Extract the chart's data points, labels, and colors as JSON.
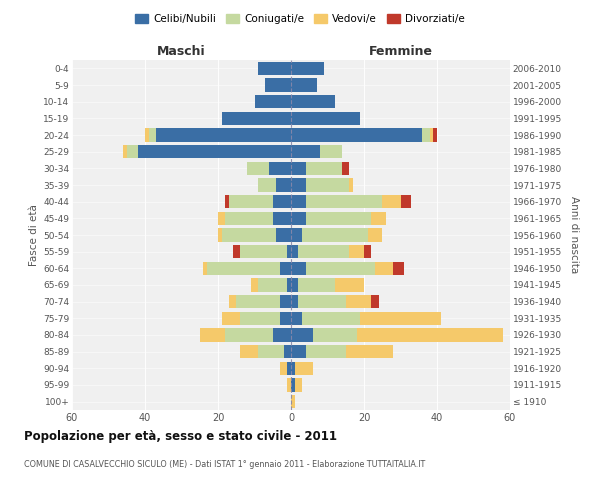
{
  "age_groups": [
    "100+",
    "95-99",
    "90-94",
    "85-89",
    "80-84",
    "75-79",
    "70-74",
    "65-69",
    "60-64",
    "55-59",
    "50-54",
    "45-49",
    "40-44",
    "35-39",
    "30-34",
    "25-29",
    "20-24",
    "15-19",
    "10-14",
    "5-9",
    "0-4"
  ],
  "birth_years": [
    "≤ 1910",
    "1911-1915",
    "1916-1920",
    "1921-1925",
    "1926-1930",
    "1931-1935",
    "1936-1940",
    "1941-1945",
    "1946-1950",
    "1951-1955",
    "1956-1960",
    "1961-1965",
    "1966-1970",
    "1971-1975",
    "1976-1980",
    "1981-1985",
    "1986-1990",
    "1991-1995",
    "1996-2000",
    "2001-2005",
    "2006-2010"
  ],
  "colors": {
    "celibi": "#3a6ea5",
    "coniugati": "#c5d9a0",
    "vedovi": "#f5c96a",
    "divorziati": "#c0392b"
  },
  "maschi": {
    "celibi": [
      0,
      0,
      1,
      2,
      5,
      3,
      3,
      1,
      3,
      1,
      4,
      5,
      5,
      4,
      6,
      42,
      37,
      19,
      10,
      7,
      9
    ],
    "coniugati": [
      0,
      0,
      0,
      7,
      13,
      11,
      12,
      8,
      20,
      13,
      15,
      13,
      12,
      5,
      6,
      3,
      2,
      0,
      0,
      0,
      0
    ],
    "vedovi": [
      0,
      1,
      2,
      5,
      7,
      5,
      2,
      2,
      1,
      0,
      1,
      2,
      0,
      0,
      0,
      1,
      1,
      0,
      0,
      0,
      0
    ],
    "divorziati": [
      0,
      0,
      0,
      0,
      0,
      0,
      0,
      0,
      0,
      2,
      0,
      0,
      1,
      0,
      0,
      0,
      0,
      0,
      0,
      0,
      0
    ]
  },
  "femmine": {
    "celibi": [
      0,
      1,
      1,
      4,
      6,
      3,
      2,
      2,
      4,
      2,
      3,
      4,
      4,
      4,
      4,
      8,
      36,
      19,
      12,
      7,
      9
    ],
    "coniugati": [
      0,
      0,
      0,
      11,
      12,
      16,
      13,
      10,
      19,
      14,
      18,
      18,
      21,
      12,
      10,
      6,
      2,
      0,
      0,
      0,
      0
    ],
    "vedovi": [
      1,
      2,
      5,
      13,
      40,
      22,
      7,
      8,
      5,
      4,
      4,
      4,
      5,
      1,
      0,
      0,
      1,
      0,
      0,
      0,
      0
    ],
    "divorziati": [
      0,
      0,
      0,
      0,
      0,
      0,
      2,
      0,
      3,
      2,
      0,
      0,
      3,
      0,
      2,
      0,
      1,
      0,
      0,
      0,
      0
    ]
  },
  "title": "Popolazione per età, sesso e stato civile - 2011",
  "subtitle": "COMUNE DI CASALVECCHIO SICULO (ME) - Dati ISTAT 1° gennaio 2011 - Elaborazione TUTTAITALIA.IT",
  "xlabel_left": "Maschi",
  "xlabel_right": "Femmine",
  "ylabel_left": "Fasce di età",
  "ylabel_right": "Anni di nascita",
  "xlim": 60,
  "legend_labels": [
    "Celibi/Nubili",
    "Coniugati/e",
    "Vedovi/e",
    "Divorziati/e"
  ],
  "bg_color": "#ffffff",
  "plot_bg": "#f0f0f0",
  "grid_color": "#cccccc"
}
